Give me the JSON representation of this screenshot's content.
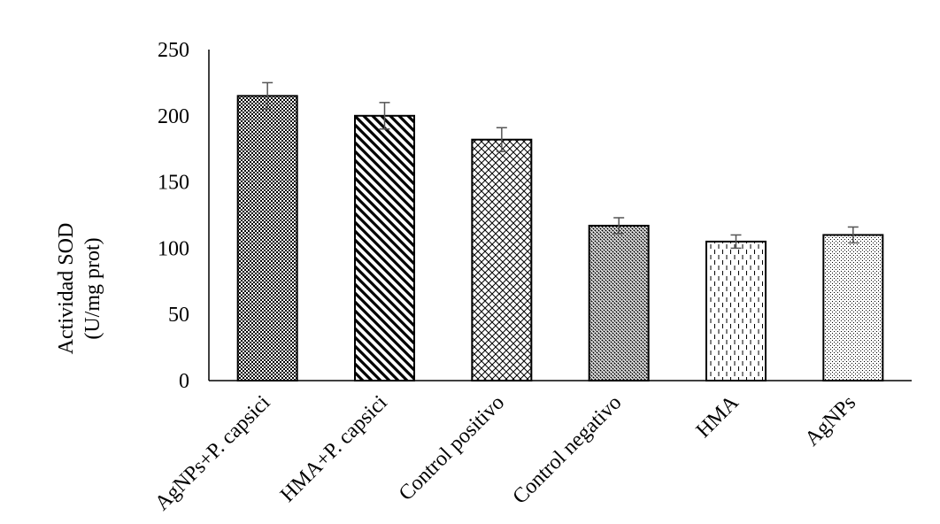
{
  "chart_data": {
    "type": "bar",
    "title": "",
    "xlabel": "",
    "ylabel": "Actividad SOD",
    "ylabel_line2": "(U/mg prot)",
    "categories": [
      "AgNPs+P. capsici",
      "HMA+P. capsici",
      "Control positivo",
      "Control negativo",
      "HMA",
      "AgNPs"
    ],
    "values": [
      215,
      200,
      182,
      117,
      105,
      110
    ],
    "errors": [
      10,
      10,
      9,
      6,
      5,
      6
    ],
    "patterns": [
      "checker",
      "diagonal",
      "crosshatch",
      "dense-dots",
      "dashed-vertical",
      "fine-dots"
    ],
    "ylim": [
      0,
      250
    ],
    "yticks": [
      "0",
      "50",
      "100",
      "150",
      "200",
      "250"
    ],
    "grid": false,
    "legend": "none",
    "bar_color": "#000000"
  }
}
